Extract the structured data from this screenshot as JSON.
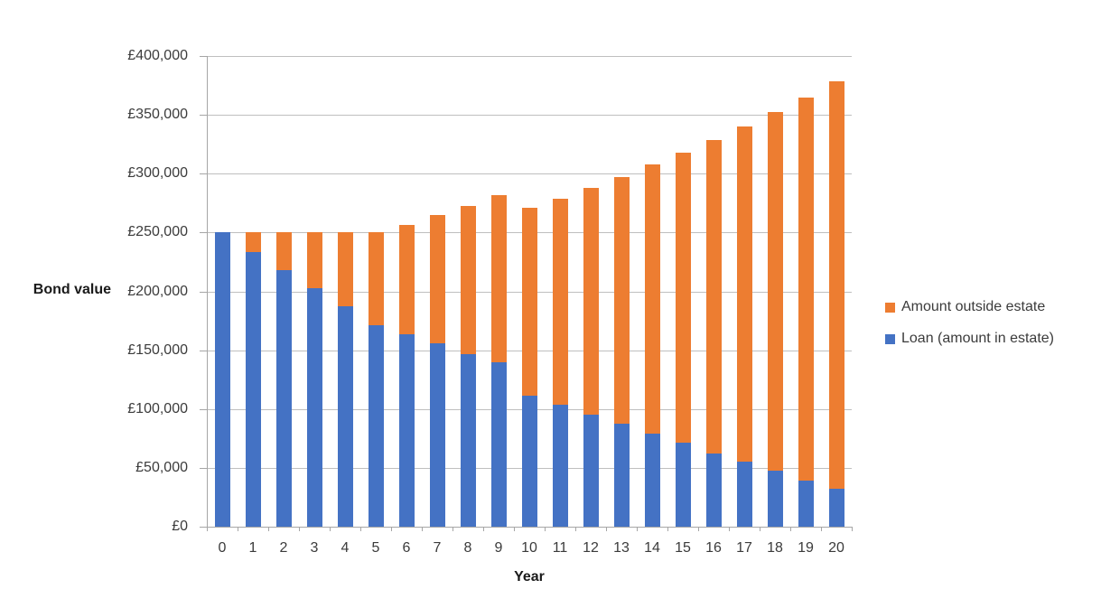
{
  "chart_data": {
    "type": "bar",
    "stacked": true,
    "title": "",
    "xlabel": "Year",
    "ylabel": "Bond value",
    "categories": [
      "0",
      "1",
      "2",
      "3",
      "4",
      "5",
      "6",
      "7",
      "8",
      "9",
      "10",
      "11",
      "12",
      "13",
      "14",
      "15",
      "16",
      "17",
      "18",
      "19",
      "20"
    ],
    "series": [
      {
        "name": "Loan (amount in estate)",
        "color": "#4472C4",
        "values": [
          250000,
          233500,
          218000,
          203000,
          187500,
          171500,
          163500,
          155500,
          147000,
          139500,
          111500,
          104000,
          95500,
          87500,
          79000,
          71500,
          62000,
          55500,
          47500,
          39500,
          32000
        ]
      },
      {
        "name": "Amount outside estate",
        "color": "#ED7D31",
        "values": [
          0,
          16500,
          32000,
          47000,
          62500,
          78500,
          93000,
          109000,
          125500,
          142500,
          159500,
          174500,
          192500,
          209500,
          228500,
          246000,
          266500,
          284500,
          305000,
          325500,
          346500
        ]
      }
    ],
    "ylim": [
      0,
      400000
    ],
    "ytick_step": 50000,
    "ytick_labels": [
      "£400,000",
      "£350,000",
      "£300,000",
      "£250,000",
      "£200,000",
      "£150,000",
      "£100,000",
      "£50,000",
      "£0"
    ],
    "grid": true,
    "legend_position": "right",
    "legend_order_top_to_bottom": [
      "Amount outside estate",
      "Loan (amount in estate)"
    ]
  },
  "colors": {
    "background": "#ffffff",
    "gridline": "#bfbfbf",
    "axis": "#a6a6a6",
    "tick_text": "#3b3b3b"
  }
}
